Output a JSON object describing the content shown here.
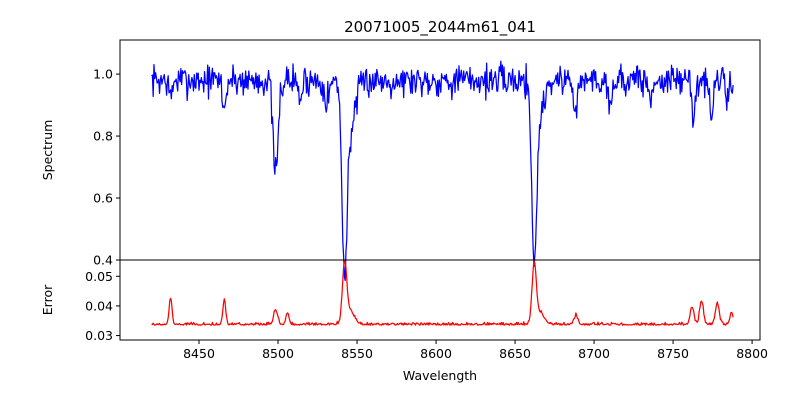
{
  "chart_data": {
    "type": "line",
    "title": "20071005_2044m61_041",
    "xlabel": "Wavelength",
    "xlim": [
      8400,
      8805
    ],
    "xticks": [
      8450,
      8500,
      8550,
      8600,
      8650,
      8700,
      8750,
      8800
    ],
    "x_range": [
      8420,
      8788
    ],
    "panels": [
      {
        "id": "spectrum",
        "ylabel": "Spectrum",
        "ylim": [
          0.4,
          1.11
        ],
        "yticks": [
          0.4,
          0.6,
          0.8,
          1.0
        ],
        "ytick_labels": [
          "0.4",
          "0.6",
          "0.8",
          "1.0"
        ],
        "color": "#0000ff",
        "continuum": 0.98,
        "noise": 0.032,
        "features": [
          {
            "center": 8498.5,
            "depth": 0.31,
            "width": 1.6
          },
          {
            "center": 8542.1,
            "depth": 0.54,
            "width": 1.5
          },
          {
            "center": 8545.5,
            "depth": 0.16,
            "width": 3.5
          },
          {
            "center": 8662.1,
            "depth": 0.52,
            "width": 1.5
          },
          {
            "center": 8665.0,
            "depth": 0.12,
            "width": 3.0
          },
          {
            "center": 8466.0,
            "depth": 0.1,
            "width": 1.0
          },
          {
            "center": 8432.0,
            "depth": 0.06,
            "width": 1.0
          },
          {
            "center": 8514.0,
            "depth": 0.06,
            "width": 1.2
          },
          {
            "center": 8531.0,
            "depth": 0.06,
            "width": 1.5
          },
          {
            "center": 8688.6,
            "depth": 0.1,
            "width": 1.2
          },
          {
            "center": 8710.0,
            "depth": 0.08,
            "width": 1.0
          },
          {
            "center": 8736.0,
            "depth": 0.08,
            "width": 1.0
          },
          {
            "center": 8763.0,
            "depth": 0.1,
            "width": 1.2
          },
          {
            "center": 8774.0,
            "depth": 0.12,
            "width": 1.2
          },
          {
            "center": 8784.0,
            "depth": 0.06,
            "width": 1.0
          }
        ],
        "seed": 7
      },
      {
        "id": "error",
        "ylabel": "Error",
        "ylim": [
          0.0285,
          0.0555
        ],
        "yticks": [
          0.03,
          0.04,
          0.05
        ],
        "ytick_labels": [
          "0.03",
          "0.04",
          "0.05"
        ],
        "color": "#ff0000",
        "continuum": 0.0335,
        "noise": 0.0007,
        "features": [
          {
            "center": 8432.0,
            "depth": -0.009,
            "width": 0.9
          },
          {
            "center": 8466.0,
            "depth": -0.0085,
            "width": 0.9
          },
          {
            "center": 8498.5,
            "depth": -0.005,
            "width": 1.2
          },
          {
            "center": 8506.0,
            "depth": -0.004,
            "width": 1.0
          },
          {
            "center": 8542.1,
            "depth": -0.0185,
            "width": 1.3
          },
          {
            "center": 8545.0,
            "depth": -0.005,
            "width": 3.0
          },
          {
            "center": 8662.1,
            "depth": -0.019,
            "width": 1.3
          },
          {
            "center": 8665.5,
            "depth": -0.004,
            "width": 3.0
          },
          {
            "center": 8688.6,
            "depth": -0.003,
            "width": 1.2
          },
          {
            "center": 8762.0,
            "depth": -0.006,
            "width": 1.2
          },
          {
            "center": 8768.0,
            "depth": -0.008,
            "width": 1.2
          },
          {
            "center": 8778.0,
            "depth": -0.007,
            "width": 1.2
          },
          {
            "center": 8787.0,
            "depth": -0.004,
            "width": 1.0
          }
        ],
        "seed": 19
      }
    ]
  }
}
